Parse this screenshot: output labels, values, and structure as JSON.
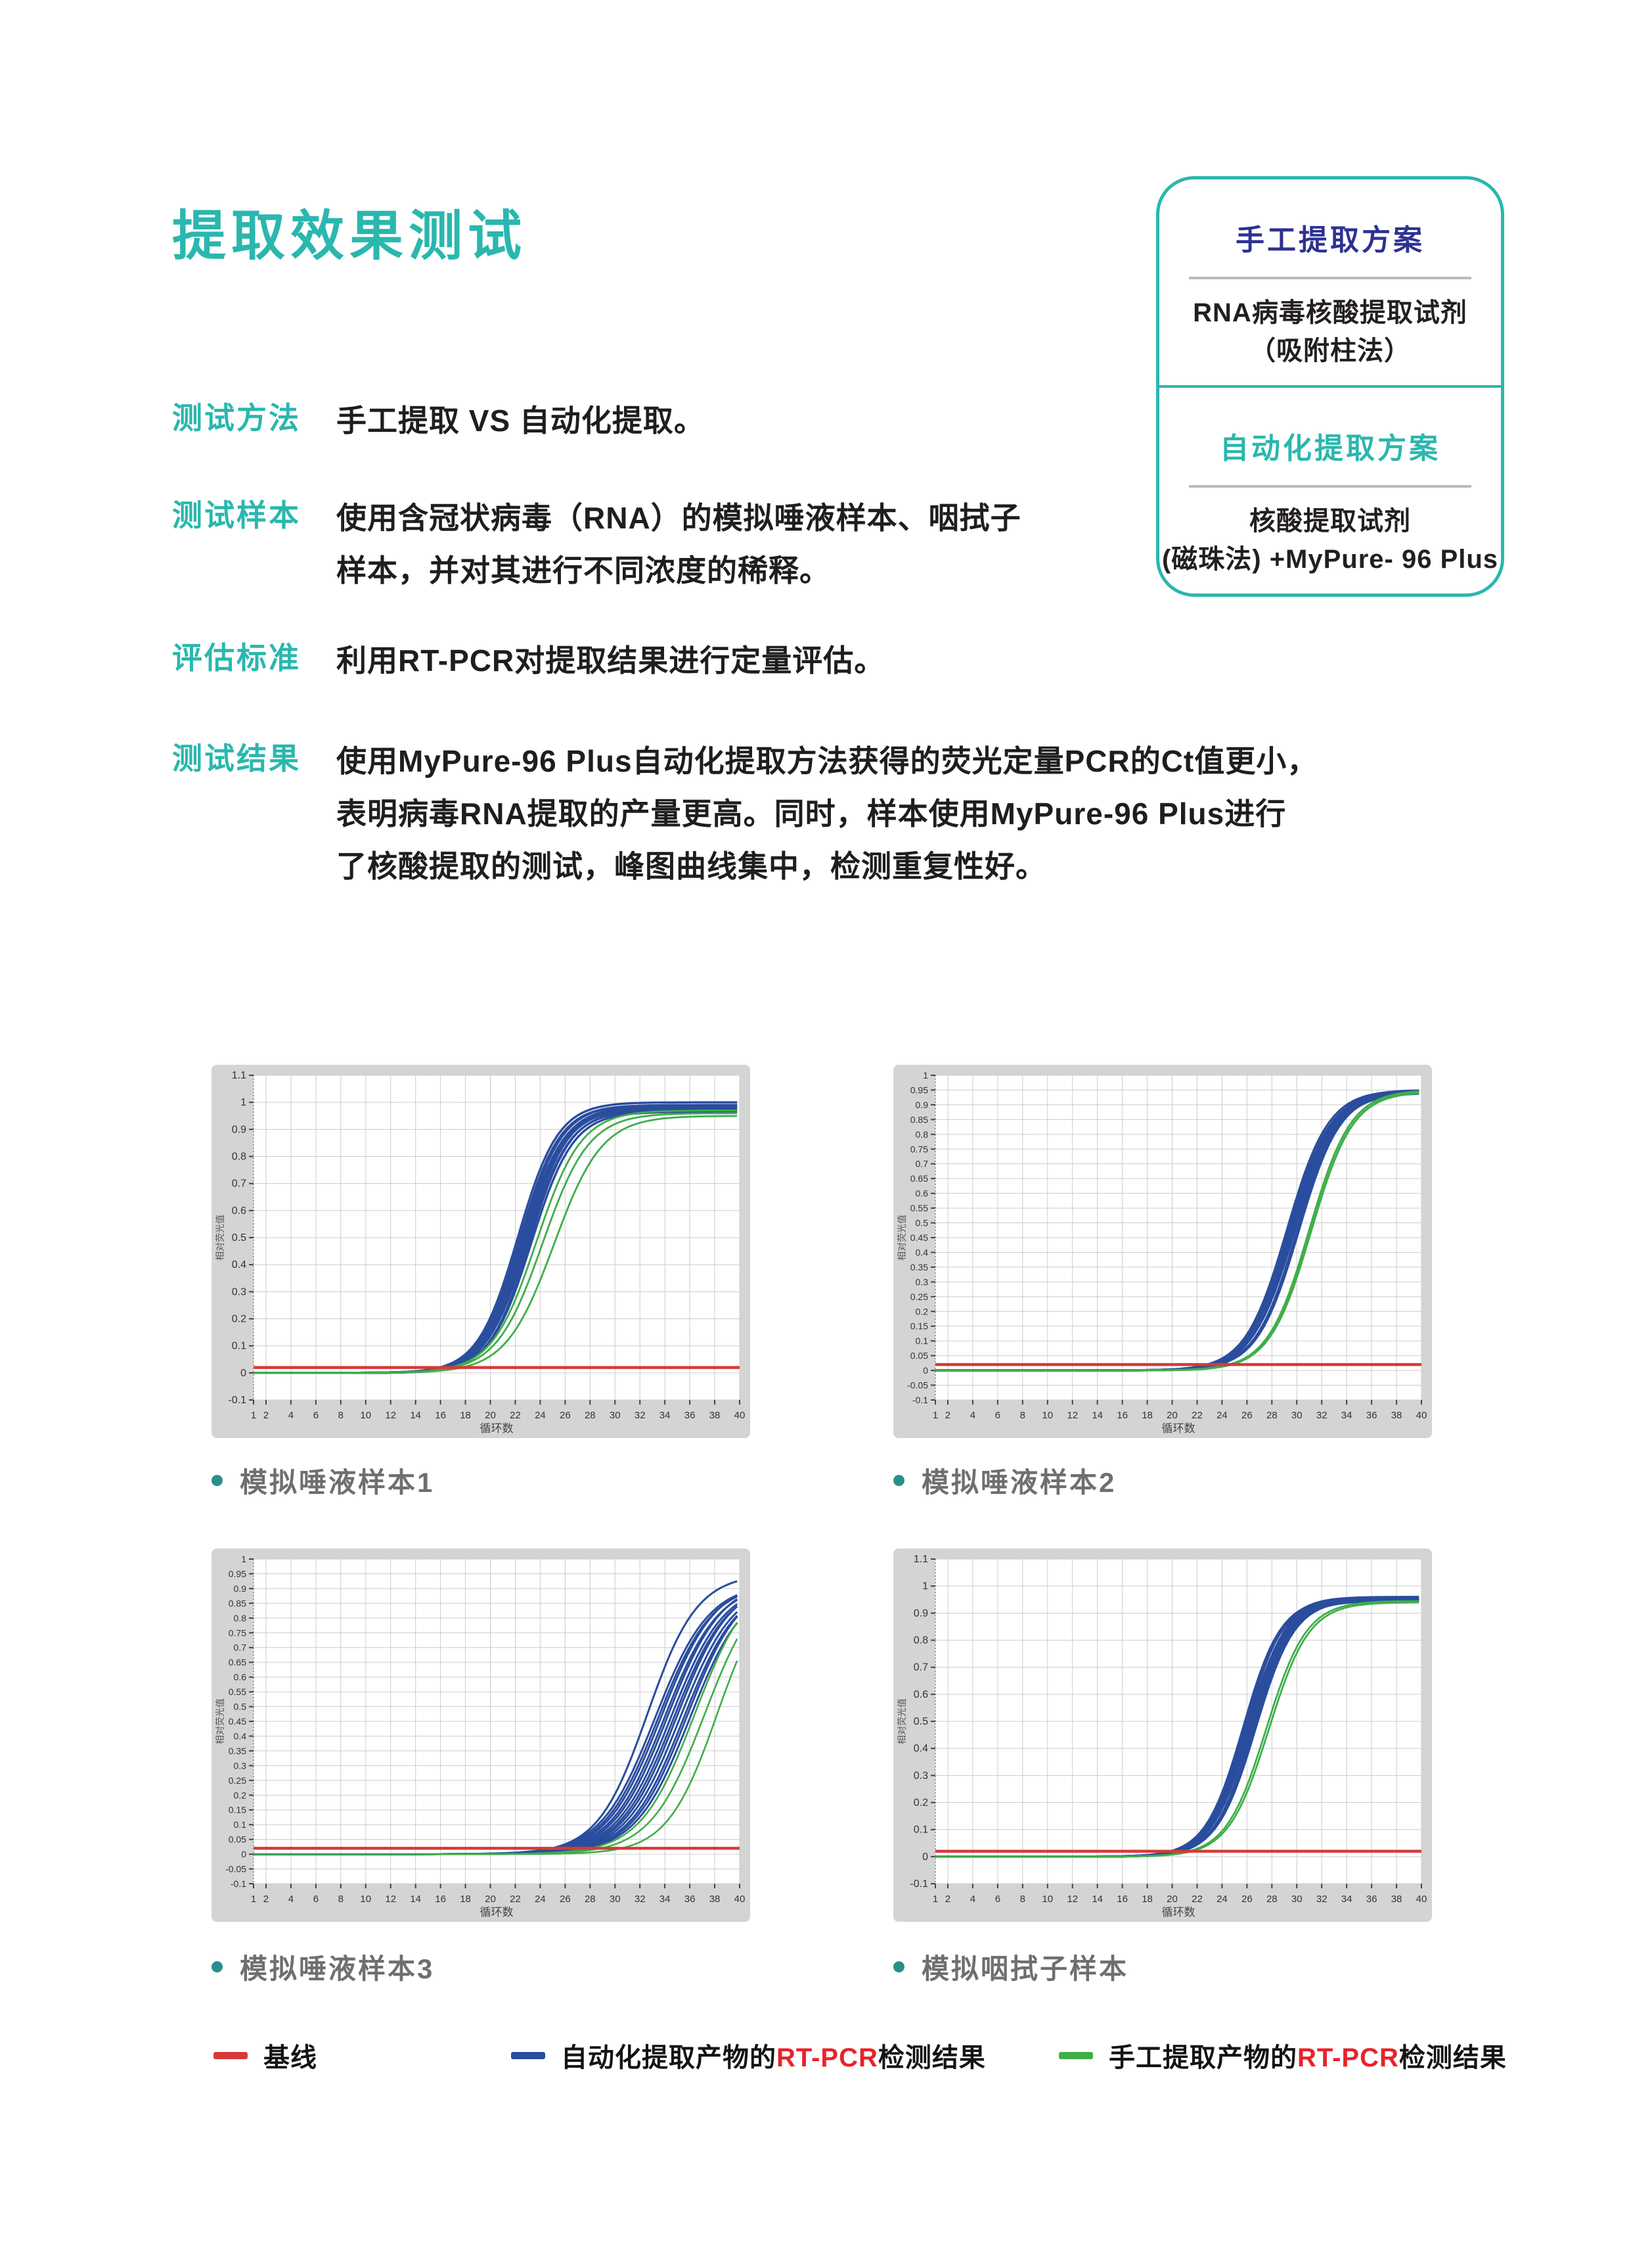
{
  "page": {
    "title": "提取效果测试"
  },
  "colors": {
    "teal_accent": "#2ab7ae",
    "navy_accent": "#2e3192",
    "body_text": "#231f20",
    "caption_gray": "#6d6f71",
    "chart_blue": "#2a4d9e",
    "chart_green": "#3fae49",
    "chart_red": "#d63a38",
    "legend_red_text": "#e8232a",
    "chart_panel_gray": "#d4d4d4",
    "grid_gray": "#cccccc",
    "divider_gray": "#b9bbbd"
  },
  "info_box": {
    "manual": {
      "title": "手工提取方案",
      "line1": "RNA病毒核酸提取试剂",
      "line2": "（吸附柱法）"
    },
    "auto": {
      "title": "自动化提取方案",
      "line1": "核酸提取试剂",
      "line2": "(磁珠法) +MyPure- 96 Plus"
    }
  },
  "sections": [
    {
      "label": "测试方法",
      "lines": [
        "手工提取 VS 自动化提取。"
      ]
    },
    {
      "label": "测试样本",
      "lines": [
        "使用含冠状病毒（RNA）的模拟唾液样本、咽拭子",
        "样本，并对其进行不同浓度的稀释。"
      ]
    },
    {
      "label": "评估标准",
      "lines": [
        "利用RT-PCR对提取结果进行定量评估。"
      ]
    },
    {
      "label": "测试结果",
      "lines": [
        "使用MyPure-96 Plus自动化提取方法获得的荧光定量PCR的Ct值更小，",
        "表明病毒RNA提取的产量更高。同时，样本使用MyPure-96 Plus进行",
        "了核酸提取的测试，峰图曲线集中，检测重复性好。"
      ]
    }
  ],
  "chart_data": [
    {
      "type": "line",
      "caption": "模拟唾液样本1",
      "xlabel": "循环数",
      "ylabel": "相对荧光值",
      "xlim": [
        1,
        40
      ],
      "ylim": [
        -0.1,
        1.1
      ],
      "ystep": 0.1,
      "xticks": [
        1,
        2,
        4,
        6,
        8,
        10,
        12,
        14,
        16,
        18,
        20,
        22,
        24,
        26,
        28,
        30,
        32,
        34,
        36,
        38,
        40
      ],
      "series": [
        {
          "name": "基线",
          "type": "baseline",
          "color": "#d63a38",
          "value": 0.02
        },
        {
          "name": "自动化提取产物的RT-PCR检测结果",
          "color": "#2a4d9e",
          "width": 3.4,
          "sigmoids": [
            [
              22.2,
              0.62,
              1.0
            ],
            [
              22.35,
              0.62,
              0.99
            ],
            [
              22.5,
              0.62,
              0.99
            ],
            [
              22.6,
              0.6,
              0.985
            ],
            [
              22.7,
              0.62,
              0.98
            ],
            [
              22.8,
              0.6,
              0.98
            ],
            [
              22.9,
              0.62,
              0.975
            ],
            [
              23.0,
              0.6,
              0.97
            ],
            [
              23.15,
              0.62,
              0.97
            ],
            [
              23.3,
              0.6,
              0.965
            ]
          ]
        },
        {
          "name": "手工提取产物的RT-PCR检测结果",
          "color": "#3fae49",
          "width": 2.8,
          "sigmoids": [
            [
              23.7,
              0.56,
              0.97
            ],
            [
              24.2,
              0.54,
              0.96
            ],
            [
              25.1,
              0.52,
              0.95
            ]
          ]
        }
      ]
    },
    {
      "type": "line",
      "caption": "模拟唾液样本2",
      "xlabel": "循环数",
      "ylabel": "相对荧光值",
      "xlim": [
        1,
        40
      ],
      "ylim": [
        -0.1,
        1.0
      ],
      "ystep": 0.05,
      "xticks": [
        1,
        2,
        4,
        6,
        8,
        10,
        12,
        14,
        16,
        18,
        20,
        22,
        24,
        26,
        28,
        30,
        32,
        34,
        36,
        38,
        40
      ],
      "series": [
        {
          "name": "基线",
          "type": "baseline",
          "color": "#d63a38",
          "value": 0.02
        },
        {
          "name": "自动化提取产物的RT-PCR检测结果",
          "color": "#2a4d9e",
          "width": 3.4,
          "sigmoids": [
            [
              29.2,
              0.6,
              0.95
            ],
            [
              29.35,
              0.6,
              0.945
            ],
            [
              29.5,
              0.6,
              0.95
            ],
            [
              29.6,
              0.62,
              0.94
            ],
            [
              29.7,
              0.6,
              0.945
            ],
            [
              29.85,
              0.58,
              0.95
            ],
            [
              30.0,
              0.6,
              0.94
            ],
            [
              30.15,
              0.6,
              0.945
            ]
          ]
        },
        {
          "name": "手工提取产物的RT-PCR检测结果",
          "color": "#3fae49",
          "width": 3.2,
          "sigmoids": [
            [
              31.0,
              0.6,
              0.95
            ],
            [
              31.15,
              0.6,
              0.945
            ]
          ]
        }
      ]
    },
    {
      "type": "line",
      "caption": "模拟唾液样本3",
      "xlabel": "循环数",
      "ylabel": "相对荧光值",
      "xlim": [
        1,
        40
      ],
      "ylim": [
        -0.1,
        1.0
      ],
      "ystep": 0.05,
      "xticks": [
        1,
        2,
        4,
        6,
        8,
        10,
        12,
        14,
        16,
        18,
        20,
        22,
        24,
        26,
        28,
        30,
        32,
        34,
        36,
        38,
        40
      ],
      "series": [
        {
          "name": "基线",
          "type": "baseline",
          "color": "#d63a38",
          "value": 0.02
        },
        {
          "name": "自动化提取产物的RT-PCR检测结果",
          "color": "#2a4d9e",
          "width": 3.0,
          "sigmoids": [
            [
              32.6,
              0.5,
              0.95
            ],
            [
              33.2,
              0.46,
              0.92
            ],
            [
              33.45,
              0.46,
              0.92
            ],
            [
              33.7,
              0.46,
              0.93
            ],
            [
              33.95,
              0.46,
              0.92
            ],
            [
              34.2,
              0.46,
              0.93
            ],
            [
              34.45,
              0.46,
              0.92
            ],
            [
              34.7,
              0.46,
              0.92
            ],
            [
              34.95,
              0.46,
              0.93
            ],
            [
              35.2,
              0.46,
              0.92
            ],
            [
              35.5,
              0.46,
              0.92
            ],
            [
              35.75,
              0.46,
              0.93
            ],
            [
              36.0,
              0.46,
              0.92
            ]
          ]
        },
        {
          "name": "手工提取产物的RT-PCR检测结果",
          "color": "#3fae49",
          "width": 2.6,
          "sigmoids": [
            [
              36.4,
              0.46,
              0.95
            ],
            [
              37.2,
              0.46,
              0.95
            ],
            [
              38.2,
              0.5,
              0.95
            ]
          ]
        }
      ]
    },
    {
      "type": "line",
      "caption": "模拟咽拭子样本",
      "xlabel": "循环数",
      "ylabel": "相对荧光值",
      "xlim": [
        1,
        40
      ],
      "ylim": [
        -0.1,
        1.1
      ],
      "ystep": 0.1,
      "xticks": [
        1,
        2,
        4,
        6,
        8,
        10,
        12,
        14,
        16,
        18,
        20,
        22,
        24,
        26,
        28,
        30,
        32,
        34,
        36,
        38,
        40
      ],
      "series": [
        {
          "name": "基线",
          "type": "baseline",
          "color": "#d63a38",
          "value": 0.02
        },
        {
          "name": "自动化提取产物的RT-PCR检测结果",
          "color": "#2a4d9e",
          "width": 3.4,
          "sigmoids": [
            [
              25.7,
              0.66,
              0.955
            ],
            [
              25.8,
              0.66,
              0.95
            ],
            [
              25.9,
              0.66,
              0.96
            ],
            [
              26.0,
              0.64,
              0.95
            ],
            [
              26.1,
              0.66,
              0.955
            ],
            [
              26.2,
              0.66,
              0.945
            ],
            [
              26.3,
              0.64,
              0.95
            ],
            [
              26.45,
              0.66,
              0.95
            ],
            [
              26.55,
              0.66,
              0.945
            ],
            [
              26.7,
              0.64,
              0.95
            ]
          ]
        },
        {
          "name": "手工提取产物的RT-PCR检测结果",
          "color": "#3fae49",
          "width": 2.8,
          "sigmoids": [
            [
              27.55,
              0.62,
              0.945
            ],
            [
              27.75,
              0.62,
              0.94
            ]
          ]
        }
      ]
    }
  ],
  "legend": [
    {
      "color": "#d63a38",
      "parts": [
        {
          "text": "基线",
          "red": false
        }
      ]
    },
    {
      "color": "#2a4d9e",
      "parts": [
        {
          "text": "自动化提取产物的",
          "red": false
        },
        {
          "text": "RT-PCR",
          "red": true
        },
        {
          "text": "检测结果",
          "red": false
        }
      ]
    },
    {
      "color": "#3fae49",
      "parts": [
        {
          "text": "手工提取产物的",
          "red": false
        },
        {
          "text": "RT-PCR",
          "red": true
        },
        {
          "text": "检测结果",
          "red": false
        }
      ]
    }
  ]
}
